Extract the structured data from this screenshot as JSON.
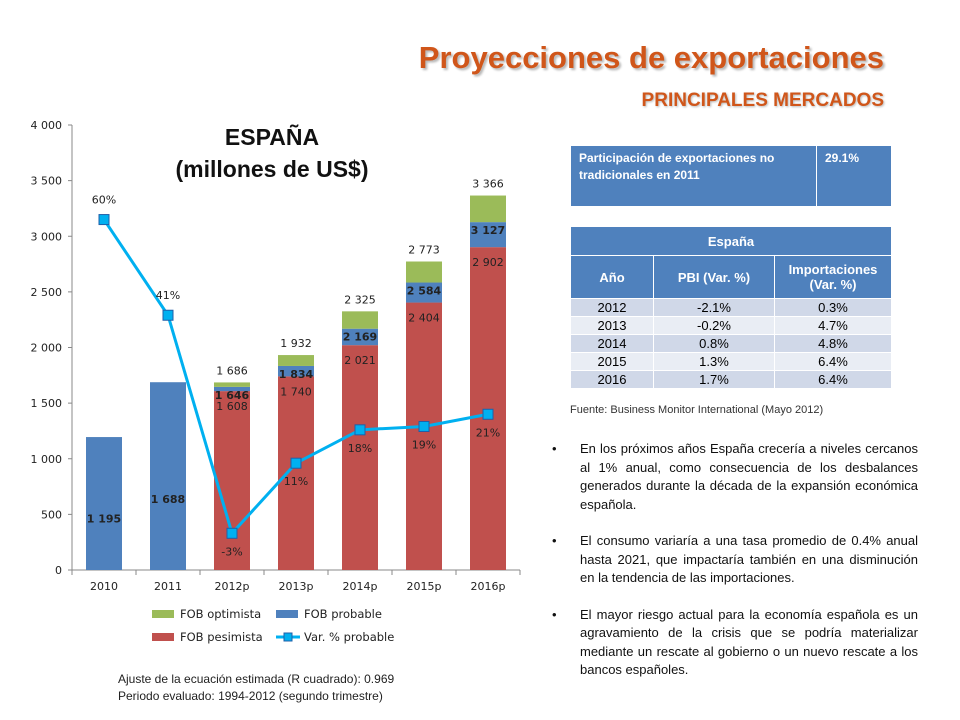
{
  "header": {
    "title": "Proyecciones de exportaciones",
    "subtitle": "PRINCIPALES MERCADOS"
  },
  "chart_data": {
    "type": "bar",
    "title": "ESPAÑA",
    "subtitle": "(millones de US$)",
    "categories": [
      "2010",
      "2011",
      "2012p",
      "2013p",
      "2014p",
      "2015p",
      "2016p"
    ],
    "ylim": [
      0,
      4000
    ],
    "yticks": [
      0,
      500,
      1000,
      1500,
      2000,
      2500,
      3000,
      3500,
      4000
    ],
    "ytick_labels": [
      "0",
      "500",
      "1 000",
      "1 500",
      "2 000",
      "2 500",
      "3 000",
      "3 500",
      "4 000"
    ],
    "grid": false,
    "legend_position": "bottom",
    "colors": {
      "optimista": "#9bbb59",
      "probable": "#4f81bd",
      "pesimista": "#c0504d",
      "var": "#00b0f0"
    },
    "series": [
      {
        "name": "FOB optimista",
        "values": [
          null,
          null,
          1686,
          1932,
          2325,
          2773,
          3366
        ],
        "labels": [
          "",
          "",
          "1 686",
          "1 932",
          "2 325",
          "2 773",
          "3 366"
        ]
      },
      {
        "name": "FOB probable",
        "values": [
          1195,
          1688,
          1646,
          1834,
          2169,
          2584,
          3127
        ],
        "labels": [
          "1 195",
          "1 688",
          "1 646",
          "1 834",
          "2 169",
          "2 584",
          "3 127"
        ]
      },
      {
        "name": "FOB pesimista",
        "values": [
          null,
          null,
          1608,
          1740,
          2021,
          2404,
          2902
        ],
        "labels": [
          "",
          "",
          "1 608",
          "1 740",
          "2 021",
          "2 404",
          "2 902"
        ]
      },
      {
        "name": "Var. % probable",
        "type": "line",
        "values": [
          60,
          41,
          -3,
          11,
          18,
          19,
          21
        ],
        "labels": [
          "60%",
          "41%",
          "-3%",
          "11%",
          "18%",
          "19%",
          "21%"
        ],
        "plotted_y": [
          3150,
          2290,
          330,
          960,
          1260,
          1290,
          1400
        ]
      }
    ],
    "legend": [
      "FOB optimista",
      "FOB probable",
      "FOB pesimista",
      "Var. % probable"
    ]
  },
  "participation": {
    "label": "Participación de exportaciones no tradicionales en 2011",
    "value": "29.1%"
  },
  "spain_table": {
    "title": "España",
    "headers": [
      "Año",
      "PBI (Var. %)",
      "Importaciones (Var. %)"
    ],
    "rows": [
      [
        "2012",
        "-2.1%",
        "0.3%"
      ],
      [
        "2013",
        "-0.2%",
        "4.7%"
      ],
      [
        "2014",
        "0.8%",
        "4.8%"
      ],
      [
        "2015",
        "1.3%",
        "6.4%"
      ],
      [
        "2016",
        "1.7%",
        "6.4%"
      ]
    ]
  },
  "source": "Fuente: Business Monitor International (Mayo 2012)",
  "bullets": [
    "En los próximos años España crecería a niveles cercanos al 1% anual, como consecuencia de los desbalances generados durante la década de la expansión económica española.",
    "El consumo variaría a una tasa promedio de 0.4% anual hasta 2021, que impactaría también en una disminución en la tendencia de las importaciones.",
    "El mayor riesgo actual para la economía española es un agravamiento de la crisis que se podría materializar mediante un rescate al gobierno o un nuevo rescate a los bancos españoles."
  ],
  "notes": {
    "line1": "Ajuste de la ecuación estimada (R cuadrado): 0.969",
    "line2": "Periodo evaluado: 1994-2012  (segundo trimestre)"
  }
}
